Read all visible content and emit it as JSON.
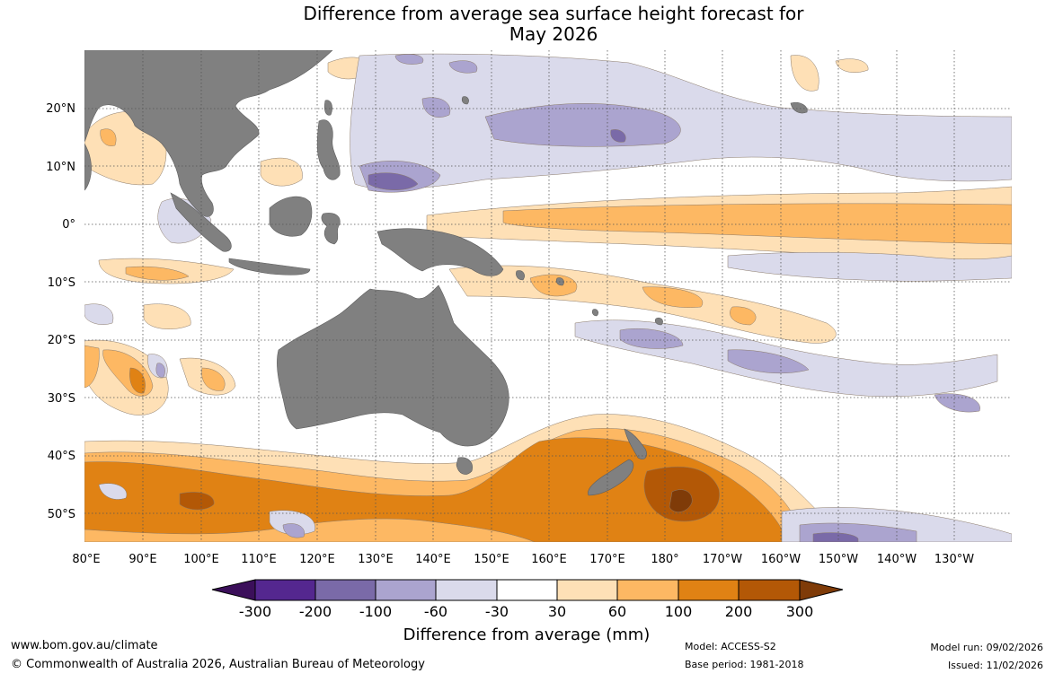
{
  "title": {
    "line1": "Difference from average sea surface height forecast for",
    "line2": "May 2026"
  },
  "map": {
    "lon_ticks": [
      "80°E",
      "90°E",
      "100°E",
      "110°E",
      "120°E",
      "130°E",
      "140°E",
      "150°E",
      "160°E",
      "170°E",
      "180°",
      "170°W",
      "160°W",
      "150°W",
      "140°W",
      "130°W"
    ],
    "lat_ticks": [
      "20°N",
      "10°N",
      "0°",
      "10°S",
      "20°S",
      "30°S",
      "40°S",
      "50°S"
    ],
    "land_color": "#808080"
  },
  "colorbar": {
    "labels": [
      "-300",
      "-200",
      "-100",
      "-60",
      "-30",
      "30",
      "60",
      "100",
      "200",
      "300"
    ],
    "colors": [
      "#3b0f5a",
      "#54278f",
      "#7a6aa8",
      "#aba4cf",
      "#dadaeb",
      "#ffffff",
      "#fee0b6",
      "#fdb863",
      "#e08214",
      "#b35806",
      "#7f3b08"
    ],
    "axis_label": "Difference from average (mm)"
  },
  "footer": {
    "website": "www.bom.gov.au/climate",
    "copyright": "© Commonwealth of Australia 2026, Australian Bureau of Meteorology",
    "model": "Model: ACCESS-S2",
    "base_period": "Base period: 1981-2018",
    "model_run": "Model run: 09/02/2026",
    "issued": "Issued: 11/02/2026"
  }
}
